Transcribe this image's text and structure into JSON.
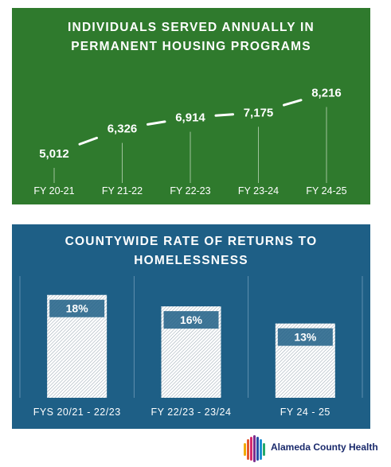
{
  "colors": {
    "green_panel": "#2f7a2d",
    "blue_panel": "#1e5f86",
    "line": "#ffffff",
    "bar_pattern_light": "#ffffff",
    "bar_pattern_dark": "#9aa9b4"
  },
  "logo": {
    "text": "Alameda County Health"
  },
  "chart_data": [
    {
      "type": "line",
      "title": "INDIVIDUALS SERVED ANNUALLY IN PERMANENT HOUSING PROGRAMS",
      "title_lines": [
        "INDIVIDUALS SERVED ANNUALLY IN",
        "PERMANENT HOUSING PROGRAMS"
      ],
      "categories": [
        "FY 20-21",
        "FY 21-22",
        "FY 22-23",
        "FY 23-24",
        "FY 24-25"
      ],
      "values": [
        5012,
        6326,
        6914,
        7175,
        8216
      ],
      "data_labels": [
        "5,012",
        "6,326",
        "6,914",
        "7,175",
        "8,216"
      ],
      "xlabel": "",
      "ylabel": "",
      "ylim": [
        0,
        9000
      ],
      "grid": false,
      "legend": "none"
    },
    {
      "type": "bar",
      "title": "COUNTYWIDE RATE OF RETURNS TO HOMELESSNESS",
      "title_lines": [
        "COUNTYWIDE RATE OF RETURNS TO",
        "HOMELESSNESS"
      ],
      "categories": [
        "FYS 20/21 - 22/23",
        "FY 22/23 - 23/24",
        "FY 24 - 25"
      ],
      "values": [
        18,
        16,
        13
      ],
      "data_labels": [
        "18%",
        "16%",
        "13%"
      ],
      "xlabel": "",
      "ylabel": "",
      "ylim": [
        0,
        22
      ],
      "grid": false,
      "legend": "none"
    }
  ]
}
